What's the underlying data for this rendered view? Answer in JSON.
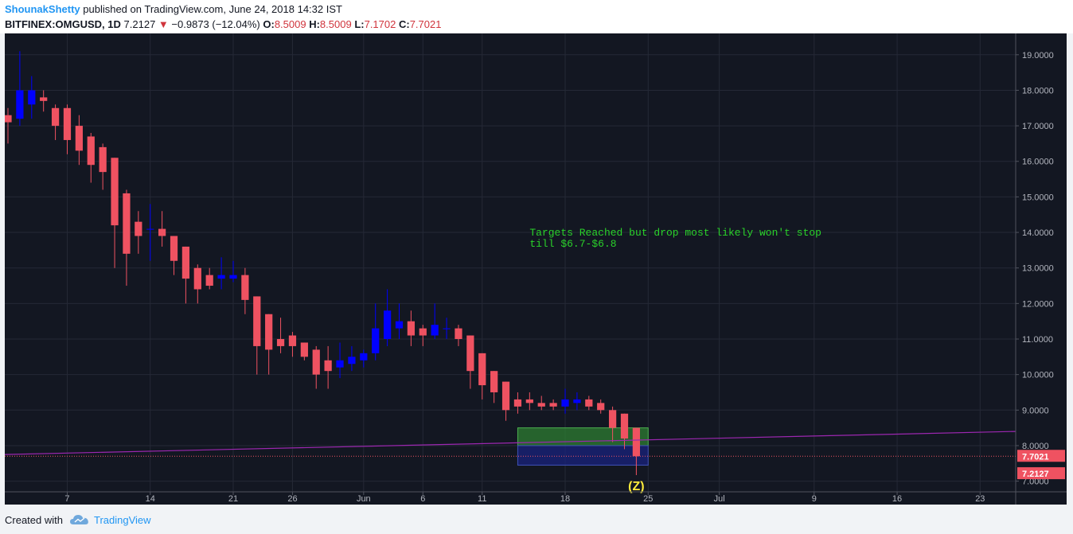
{
  "header": {
    "author": "ShounakShetty",
    "published": "published on TradingView.com, June 24, 2018 14:32 IST",
    "symbol": "BITFINEX:OMGUSD, 1D",
    "last": "7.2127",
    "arrow": "▼",
    "change": "−0.9873 (−12.04%)",
    "o_label": "O:",
    "o_value": "8.5009",
    "h_label": "H:",
    "h_value": "8.5009",
    "l_label": "L:",
    "l_value": "7.1702",
    "c_label": "C:",
    "c_value": "7.7021"
  },
  "footer": {
    "created": "Created with",
    "brand": "TradingView"
  },
  "colors": {
    "up": "#0000ff",
    "down": "#ef5261",
    "background": "#131722",
    "trendline": "#9c27b0",
    "annotation": "#2ad22a",
    "wave_label": "#ffeb3b"
  },
  "chart_data": {
    "type": "candlestick",
    "y_range": [
      6.7,
      19.6
    ],
    "y_ticks": [
      "19.0000",
      "18.0000",
      "17.0000",
      "16.0000",
      "15.0000",
      "14.0000",
      "13.0000",
      "12.0000",
      "11.0000",
      "10.0000",
      "9.0000",
      "8.0000",
      "7.0000"
    ],
    "x_ticks": [
      "7",
      "14",
      "21",
      "26",
      "Jun",
      "6",
      "11",
      "18",
      "25",
      "Jul",
      "9",
      "16",
      "23"
    ],
    "x_tick_dates": [
      "2018-05-07",
      "2018-05-14",
      "2018-05-21",
      "2018-05-26",
      "2018-06-01",
      "2018-06-06",
      "2018-06-11",
      "2018-06-18",
      "2018-06-25",
      "2018-07-01",
      "2018-07-09",
      "2018-07-16",
      "2018-07-23"
    ],
    "x_range": [
      "2018-05-02",
      "2018-07-26"
    ],
    "candles": [
      {
        "date": "2018-05-02",
        "o": 17.3,
        "h": 17.5,
        "l": 16.5,
        "c": 17.1
      },
      {
        "date": "2018-05-03",
        "o": 17.2,
        "h": 19.1,
        "l": 17.0,
        "c": 18.0
      },
      {
        "date": "2018-05-04",
        "o": 17.6,
        "h": 18.4,
        "l": 17.2,
        "c": 18.0
      },
      {
        "date": "2018-05-05",
        "o": 17.8,
        "h": 18.0,
        "l": 17.4,
        "c": 17.7
      },
      {
        "date": "2018-05-06",
        "o": 17.5,
        "h": 17.6,
        "l": 16.6,
        "c": 17.0
      },
      {
        "date": "2018-05-07",
        "o": 17.5,
        "h": 17.6,
        "l": 16.2,
        "c": 16.6
      },
      {
        "date": "2018-05-08",
        "o": 17.0,
        "h": 17.3,
        "l": 15.9,
        "c": 16.3
      },
      {
        "date": "2018-05-09",
        "o": 16.7,
        "h": 16.8,
        "l": 15.4,
        "c": 15.9
      },
      {
        "date": "2018-05-10",
        "o": 16.4,
        "h": 16.5,
        "l": 15.2,
        "c": 15.7
      },
      {
        "date": "2018-05-11",
        "o": 16.1,
        "h": 16.1,
        "l": 13.0,
        "c": 14.2
      },
      {
        "date": "2018-05-12",
        "o": 15.1,
        "h": 15.2,
        "l": 12.5,
        "c": 13.4
      },
      {
        "date": "2018-05-13",
        "o": 14.3,
        "h": 14.6,
        "l": 13.4,
        "c": 13.9
      },
      {
        "date": "2018-05-14",
        "o": 14.1,
        "h": 14.8,
        "l": 13.2,
        "c": 14.1
      },
      {
        "date": "2018-05-15",
        "o": 14.1,
        "h": 14.6,
        "l": 13.6,
        "c": 13.9
      },
      {
        "date": "2018-05-16",
        "o": 13.9,
        "h": 13.9,
        "l": 12.8,
        "c": 13.2
      },
      {
        "date": "2018-05-17",
        "o": 13.6,
        "h": 13.6,
        "l": 12.0,
        "c": 12.7
      },
      {
        "date": "2018-05-18",
        "o": 13.0,
        "h": 13.1,
        "l": 12.0,
        "c": 12.4
      },
      {
        "date": "2018-05-19",
        "o": 12.8,
        "h": 13.0,
        "l": 12.4,
        "c": 12.5
      },
      {
        "date": "2018-05-20",
        "o": 12.7,
        "h": 13.3,
        "l": 12.4,
        "c": 12.8
      },
      {
        "date": "2018-05-21",
        "o": 12.7,
        "h": 13.2,
        "l": 12.6,
        "c": 12.8
      },
      {
        "date": "2018-05-22",
        "o": 12.8,
        "h": 13.0,
        "l": 11.7,
        "c": 12.1
      },
      {
        "date": "2018-05-23",
        "o": 12.2,
        "h": 12.2,
        "l": 10.0,
        "c": 10.8
      },
      {
        "date": "2018-05-24",
        "o": 11.7,
        "h": 11.7,
        "l": 10.0,
        "c": 10.7
      },
      {
        "date": "2018-05-25",
        "o": 11.0,
        "h": 11.6,
        "l": 10.6,
        "c": 10.8
      },
      {
        "date": "2018-05-26",
        "o": 11.1,
        "h": 11.2,
        "l": 10.5,
        "c": 10.8
      },
      {
        "date": "2018-05-27",
        "o": 10.9,
        "h": 10.9,
        "l": 10.4,
        "c": 10.5
      },
      {
        "date": "2018-05-28",
        "o": 10.7,
        "h": 10.8,
        "l": 9.6,
        "c": 10.0
      },
      {
        "date": "2018-05-29",
        "o": 10.4,
        "h": 10.8,
        "l": 9.6,
        "c": 10.1
      },
      {
        "date": "2018-05-30",
        "o": 10.2,
        "h": 10.9,
        "l": 9.9,
        "c": 10.4
      },
      {
        "date": "2018-05-31",
        "o": 10.3,
        "h": 10.8,
        "l": 10.1,
        "c": 10.5
      },
      {
        "date": "2018-06-01",
        "o": 10.4,
        "h": 10.7,
        "l": 10.2,
        "c": 10.6
      },
      {
        "date": "2018-06-02",
        "o": 10.6,
        "h": 12.0,
        "l": 10.4,
        "c": 11.3
      },
      {
        "date": "2018-06-03",
        "o": 11.0,
        "h": 12.4,
        "l": 10.8,
        "c": 11.8
      },
      {
        "date": "2018-06-04",
        "o": 11.3,
        "h": 12.0,
        "l": 11.0,
        "c": 11.5
      },
      {
        "date": "2018-06-05",
        "o": 11.5,
        "h": 11.8,
        "l": 10.8,
        "c": 11.1
      },
      {
        "date": "2018-06-06",
        "o": 11.3,
        "h": 11.4,
        "l": 10.8,
        "c": 11.1
      },
      {
        "date": "2018-06-07",
        "o": 11.1,
        "h": 12.0,
        "l": 11.0,
        "c": 11.4
      },
      {
        "date": "2018-06-08",
        "o": 11.3,
        "h": 11.6,
        "l": 11.0,
        "c": 11.3
      },
      {
        "date": "2018-06-09",
        "o": 11.3,
        "h": 11.4,
        "l": 10.8,
        "c": 11.0
      },
      {
        "date": "2018-06-10",
        "o": 11.1,
        "h": 11.1,
        "l": 9.6,
        "c": 10.1
      },
      {
        "date": "2018-06-11",
        "o": 10.6,
        "h": 10.6,
        "l": 9.3,
        "c": 9.7
      },
      {
        "date": "2018-06-12",
        "o": 10.1,
        "h": 10.1,
        "l": 9.2,
        "c": 9.5
      },
      {
        "date": "2018-06-13",
        "o": 9.8,
        "h": 9.8,
        "l": 8.7,
        "c": 9.0
      },
      {
        "date": "2018-06-14",
        "o": 9.3,
        "h": 9.5,
        "l": 8.9,
        "c": 9.1
      },
      {
        "date": "2018-06-15",
        "o": 9.3,
        "h": 9.5,
        "l": 9.0,
        "c": 9.2
      },
      {
        "date": "2018-06-16",
        "o": 9.2,
        "h": 9.4,
        "l": 9.0,
        "c": 9.1
      },
      {
        "date": "2018-06-17",
        "o": 9.2,
        "h": 9.3,
        "l": 9.0,
        "c": 9.1
      },
      {
        "date": "2018-06-18",
        "o": 9.1,
        "h": 9.6,
        "l": 8.9,
        "c": 9.3
      },
      {
        "date": "2018-06-19",
        "o": 9.2,
        "h": 9.5,
        "l": 9.0,
        "c": 9.3
      },
      {
        "date": "2018-06-20",
        "o": 9.3,
        "h": 9.4,
        "l": 9.0,
        "c": 9.1
      },
      {
        "date": "2018-06-21",
        "o": 9.2,
        "h": 9.3,
        "l": 8.9,
        "c": 9.0
      },
      {
        "date": "2018-06-22",
        "o": 9.0,
        "h": 9.1,
        "l": 8.1,
        "c": 8.5
      },
      {
        "date": "2018-06-23",
        "o": 8.9,
        "h": 8.9,
        "l": 7.9,
        "c": 8.2
      },
      {
        "date": "2018-06-24",
        "o": 8.5009,
        "h": 8.5009,
        "l": 7.1702,
        "c": 7.7021
      }
    ],
    "trendline": {
      "from": {
        "date": "2018-05-02",
        "value": 7.75
      },
      "to": {
        "date": "2018-07-26",
        "value": 8.4
      }
    },
    "zones": [
      {
        "from": "2018-06-14",
        "to": "2018-06-25",
        "top": 8.5,
        "bottom": 8.0,
        "color": "#2e7d32"
      },
      {
        "from": "2018-06-14",
        "to": "2018-06-25",
        "top": 8.0,
        "bottom": 7.45,
        "color": "#1a237e"
      }
    ],
    "price_labels": [
      {
        "value": 7.7021,
        "text": "7.7021"
      },
      {
        "value": 7.2127,
        "text": "7.2127"
      }
    ],
    "annotation": {
      "lines": [
        "Targets Reached but drop most likely won't stop",
        "till $6.7-$6.8"
      ],
      "date": "2018-06-19",
      "value": 14.0
    },
    "wave_label": {
      "text": "(Z)",
      "date": "2018-06-24",
      "value": 6.75
    }
  }
}
